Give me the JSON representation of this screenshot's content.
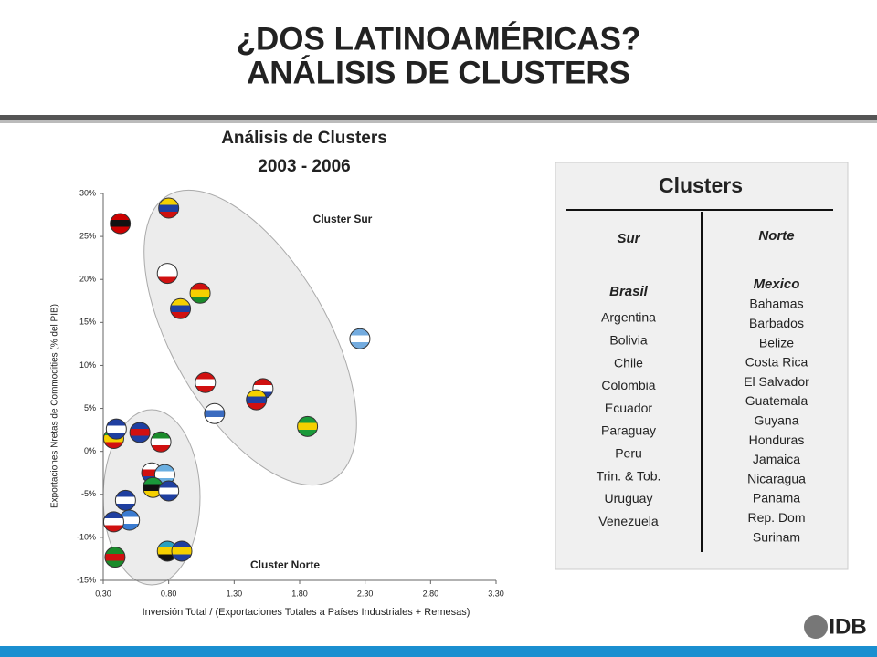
{
  "header": {
    "title": [
      "¿DOS LATINOAMÉRICAS?",
      "ANÁLISIS DE CLUSTERS"
    ]
  },
  "chart_data": {
    "type": "scatter",
    "title": [
      "Análisis de Clusters",
      "2003 - 2006"
    ],
    "xlabel": "Inversión Total / (Exportaciones Totales a Países Industriales + Remesas)",
    "ylabel": "Exportaciones Nretas de Commodities (% del PIB)",
    "xlim": [
      0.3,
      3.3
    ],
    "xticks": [
      {
        "value": 0.3,
        "label": "0.30"
      },
      {
        "value": 0.8,
        "label": "0.80"
      },
      {
        "value": 1.3,
        "label": "1.30"
      },
      {
        "value": 1.8,
        "label": "1.80"
      },
      {
        "value": 2.3,
        "label": "2.30"
      },
      {
        "value": 2.8,
        "label": "2.80"
      },
      {
        "value": 3.3,
        "label": "3.30"
      }
    ],
    "ylim": [
      -15,
      30
    ],
    "yticks": [
      {
        "value": 30,
        "label": "30%"
      },
      {
        "value": 25,
        "label": "25%"
      },
      {
        "value": 20,
        "label": "20%"
      },
      {
        "value": 15,
        "label": "15%"
      },
      {
        "value": 10,
        "label": "10%"
      },
      {
        "value": 5,
        "label": "5%"
      },
      {
        "value": 0,
        "label": "0%"
      },
      {
        "value": -5,
        "label": "-5%"
      },
      {
        "value": -10,
        "label": "-10%"
      },
      {
        "value": -15,
        "label": "-15%"
      }
    ],
    "series": [
      {
        "name": "Cluster Sur",
        "x": [
          0.43,
          0.8,
          0.79,
          1.04,
          0.89,
          2.26,
          1.08,
          1.52,
          1.47,
          1.15,
          1.86
        ],
        "values": [
          26.5,
          28.3,
          20.7,
          18.4,
          16.6,
          13.1,
          8.0,
          7.3,
          6.0,
          4.4,
          2.9
        ],
        "colors": [
          [
            "#cc0000",
            "#111111",
            "#cc0000"
          ],
          [
            "#f5d000",
            "#1f3fa0",
            "#d01010"
          ],
          [
            "#ffffff",
            "#ffffff",
            "#d01010"
          ],
          [
            "#d01010",
            "#f5d000",
            "#1a8a2a"
          ],
          [
            "#f5d000",
            "#1f3fa0",
            "#d01010"
          ],
          [
            "#74acdf",
            "#ffffff",
            "#74acdf"
          ],
          [
            "#d01010",
            "#ffffff",
            "#d01010"
          ],
          [
            "#d01010",
            "#ffffff",
            "#1f3fa0"
          ],
          [
            "#f5d000",
            "#1f3fa0",
            "#d01010"
          ],
          [
            "#ffffff",
            "#3a6bc0",
            "#ffffff"
          ],
          [
            "#1a9a3a",
            "#f5d000",
            "#1a9a3a"
          ]
        ]
      },
      {
        "name": "Cluster Norte",
        "x": [
          0.38,
          0.4,
          0.58,
          0.74,
          0.67,
          0.77,
          0.68,
          0.8,
          0.47,
          0.5,
          0.38,
          0.39,
          0.79,
          0.9
        ],
        "values": [
          1.5,
          2.6,
          2.2,
          1.1,
          -2.5,
          -2.7,
          -4.2,
          -4.6,
          -5.7,
          -8.0,
          -8.2,
          -12.3,
          -11.6,
          -11.6
        ],
        "colors": [
          [
            "#1a9a3a",
            "#f5d000",
            "#d01010"
          ],
          [
            "#1f3fa0",
            "#ffffff",
            "#1f3fa0"
          ],
          [
            "#1f3fa0",
            "#d01010",
            "#1f3fa0"
          ],
          [
            "#1a8a2a",
            "#ffffff",
            "#d01010"
          ],
          [
            "#ffffff",
            "#d01010",
            "#1f3fa0"
          ],
          [
            "#6aaee0",
            "#ffffff",
            "#6aaee0"
          ],
          [
            "#1a9a3a",
            "#111111",
            "#f5d000"
          ],
          [
            "#1f3fa0",
            "#ffffff",
            "#1f3fa0"
          ],
          [
            "#1f3fa0",
            "#ffffff",
            "#1f3fa0"
          ],
          [
            "#3a7bd0",
            "#ffffff",
            "#3a7bd0"
          ],
          [
            "#1f3fa0",
            "#ffffff",
            "#d01010"
          ],
          [
            "#1a8a2a",
            "#d01010",
            "#1a8a2a"
          ],
          [
            "#2aa0c0",
            "#f5d000",
            "#111111"
          ],
          [
            "#1f3fa0",
            "#f5d000",
            "#1f3fa0"
          ]
        ]
      }
    ]
  },
  "panel": {
    "title": "Clusters",
    "columns": [
      {
        "heading": "Sur",
        "lead": "Brasil",
        "items": [
          "Argentina",
          "Bolivia",
          "Chile",
          "Colombia",
          "Ecuador",
          "Paraguay",
          "Peru",
          "Trin. & Tob.",
          "Uruguay",
          "Venezuela"
        ]
      },
      {
        "heading": "Norte",
        "lead": "Mexico",
        "items": [
          "Bahamas",
          "Barbados",
          "Belize",
          "Costa Rica",
          "El Salvador",
          "Guatemala",
          "Guyana",
          "Honduras",
          "Jamaica",
          "Nicaragua",
          "Panama",
          "Rep. Dom",
          "Surinam"
        ]
      }
    ]
  },
  "logo": "IDB"
}
